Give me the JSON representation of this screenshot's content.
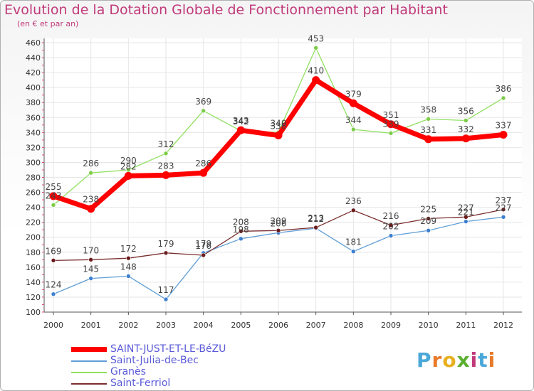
{
  "title": "Evolution de la Dotation Globale de Fonctionnement par Habitant",
  "subtitle": "(en € et par an)",
  "logo": {
    "text": "Proxiti",
    "letter_colors": [
      "#4aa8d8",
      "#e87a2a",
      "#e8b020",
      "#5ab030",
      "#c03a7a",
      "#4aa8d8",
      "#e87a2a"
    ]
  },
  "chart_data": {
    "type": "line",
    "x": [
      "2000",
      "2001",
      "2002",
      "2003",
      "2004",
      "2005",
      "2006",
      "2007",
      "2008",
      "2009",
      "2010",
      "2011",
      "2012"
    ],
    "ylim": [
      100,
      460
    ],
    "yticks": [
      100,
      120,
      140,
      160,
      180,
      200,
      220,
      240,
      260,
      280,
      300,
      320,
      340,
      360,
      380,
      400,
      420,
      440,
      460
    ],
    "grid": true,
    "legend_position": "bottom-left",
    "series": [
      {
        "name": "SAINT-JUST-ET-LE-BéZU",
        "values": [
          255,
          238,
          282,
          283,
          286,
          343,
          336,
          410,
          379,
          351,
          331,
          332,
          337
        ],
        "color": "#ff0000",
        "marker_color": "#ff0000",
        "width": 7,
        "labels": true
      },
      {
        "name": "Saint-Julia-de-Bec",
        "values": [
          124,
          145,
          148,
          117,
          179,
          198,
          206,
          212,
          181,
          202,
          209,
          221,
          227
        ],
        "color": "#5f9ed6",
        "marker_color": "#3d7fd0",
        "width": 1.3,
        "labels": true
      },
      {
        "name": "Granès",
        "values": [
          243,
          286,
          290,
          312,
          369,
          342,
          340,
          453,
          344,
          339,
          358,
          356,
          386
        ],
        "color": "#90e060",
        "marker_color": "#7ccc46",
        "width": 1.3,
        "labels": true
      },
      {
        "name": "Saint-Ferriol",
        "values": [
          169,
          170,
          172,
          179,
          176,
          208,
          209,
          213,
          236,
          216,
          225,
          227,
          237
        ],
        "color": "#7a2e2e",
        "marker_color": "#6a1a1a",
        "width": 1.3,
        "labels": true
      }
    ]
  }
}
